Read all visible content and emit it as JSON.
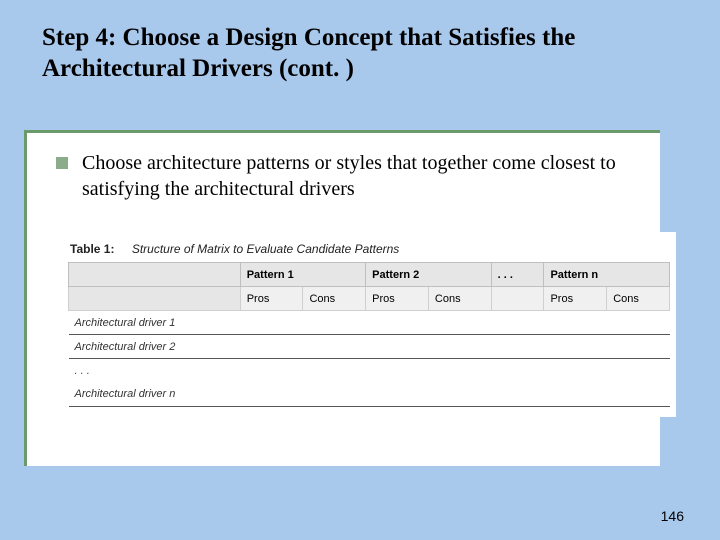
{
  "slide": {
    "title": "Step 4: Choose a Design Concept that Satisfies the Architectural Drivers (cont. )",
    "bullet_text": "Choose architecture patterns or styles that together come closest to satisfying the architectural drivers",
    "page_number": "146"
  },
  "table": {
    "caption_label": "Table 1:",
    "caption_title": "Structure of Matrix to Evaluate Candidate Patterns",
    "pattern_headers": [
      "Pattern 1",
      "Pattern 2",
      ". . .",
      "Pattern n"
    ],
    "sub_headers": [
      "Pros",
      "Cons",
      "Pros",
      "Cons",
      "",
      "Pros",
      "Cons"
    ],
    "driver_rows": [
      "Architectural driver 1",
      "Architectural driver 2",
      ". . .",
      "Architectural driver n"
    ],
    "colors": {
      "header_bg": "#e6e6e6",
      "subheader_bg": "#f0f0f0",
      "border": "#bfbfbf",
      "rule": "#555555"
    }
  },
  "theme": {
    "background": "#a8c8ec",
    "frame_border": "#6a9a6a",
    "bullet_color": "#8aac8a",
    "title_fontsize": 25,
    "body_fontsize": 20,
    "table_fontsize": 11
  }
}
